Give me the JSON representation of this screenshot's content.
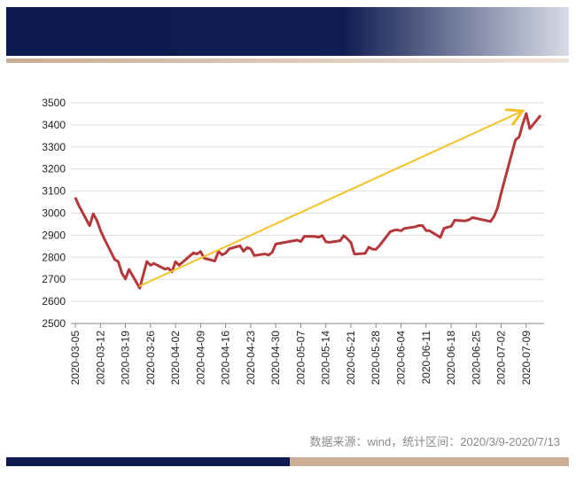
{
  "chart_data": {
    "type": "line",
    "source": "数据来源：wind，统计区间：2020/3/9-2020/7/13",
    "x": [
      "2020-03-05",
      "2020-03-06",
      "2020-03-09",
      "2020-03-10",
      "2020-03-11",
      "2020-03-12",
      "2020-03-13",
      "2020-03-16",
      "2020-03-17",
      "2020-03-18",
      "2020-03-19",
      "2020-03-20",
      "2020-03-23",
      "2020-03-24",
      "2020-03-25",
      "2020-03-26",
      "2020-03-27",
      "2020-03-30",
      "2020-03-31",
      "2020-04-01",
      "2020-04-02",
      "2020-04-03",
      "2020-04-07",
      "2020-04-08",
      "2020-04-09",
      "2020-04-10",
      "2020-04-13",
      "2020-04-14",
      "2020-04-15",
      "2020-04-16",
      "2020-04-17",
      "2020-04-20",
      "2020-04-21",
      "2020-04-22",
      "2020-04-23",
      "2020-04-24",
      "2020-04-27",
      "2020-04-28",
      "2020-04-29",
      "2020-04-30",
      "2020-05-06",
      "2020-05-07",
      "2020-05-08",
      "2020-05-11",
      "2020-05-12",
      "2020-05-13",
      "2020-05-14",
      "2020-05-15",
      "2020-05-18",
      "2020-05-19",
      "2020-05-20",
      "2020-05-21",
      "2020-05-22",
      "2020-05-25",
      "2020-05-26",
      "2020-05-27",
      "2020-05-28",
      "2020-05-29",
      "2020-06-01",
      "2020-06-02",
      "2020-06-03",
      "2020-06-04",
      "2020-06-05",
      "2020-06-08",
      "2020-06-09",
      "2020-06-10",
      "2020-06-11",
      "2020-06-12",
      "2020-06-15",
      "2020-06-16",
      "2020-06-17",
      "2020-06-18",
      "2020-06-19",
      "2020-06-22",
      "2020-06-23",
      "2020-06-24",
      "2020-06-29",
      "2020-06-30",
      "2020-07-01",
      "2020-07-02",
      "2020-07-03",
      "2020-07-06",
      "2020-07-07",
      "2020-07-08",
      "2020-07-09",
      "2020-07-10",
      "2020-07-13"
    ],
    "series": [
      {
        "color": "#b5373a",
        "values": [
          3071,
          3034,
          2943,
          2997,
          2968,
          2923,
          2887,
          2790,
          2780,
          2728,
          2702,
          2745,
          2660,
          2722,
          2781,
          2764,
          2772,
          2747,
          2750,
          2734,
          2780,
          2764,
          2820,
          2815,
          2826,
          2796,
          2783,
          2827,
          2811,
          2819,
          2838,
          2852,
          2827,
          2844,
          2838,
          2808,
          2815,
          2810,
          2822,
          2860,
          2878,
          2871,
          2895,
          2894,
          2891,
          2898,
          2870,
          2868,
          2875,
          2898,
          2884,
          2867,
          2814,
          2818,
          2846,
          2837,
          2836,
          2853,
          2916,
          2922,
          2924,
          2920,
          2931,
          2938,
          2944,
          2944,
          2921,
          2920,
          2890,
          2931,
          2936,
          2940,
          2968,
          2965,
          2970,
          2980,
          2962,
          2985,
          3025,
          3091,
          3152,
          3332,
          3345,
          3403,
          3451,
          3383,
          3443
        ]
      }
    ],
    "xlim": [
      "2020-03-05",
      "2020-07-13"
    ],
    "xticks": [
      "2020-03-05",
      "2020-03-12",
      "2020-03-19",
      "2020-03-26",
      "2020-04-02",
      "2020-04-09",
      "2020-04-16",
      "2020-04-23",
      "2020-04-30",
      "2020-05-07",
      "2020-05-14",
      "2020-05-21",
      "2020-05-28",
      "2020-06-04",
      "2020-06-11",
      "2020-06-18",
      "2020-06-25",
      "2020-07-02",
      "2020-07-09"
    ],
    "ylim": [
      2500,
      3500
    ],
    "yticks": [
      2500,
      2600,
      2700,
      2800,
      2900,
      3000,
      3100,
      3200,
      3300,
      3400,
      3500
    ],
    "grid": true
  }
}
